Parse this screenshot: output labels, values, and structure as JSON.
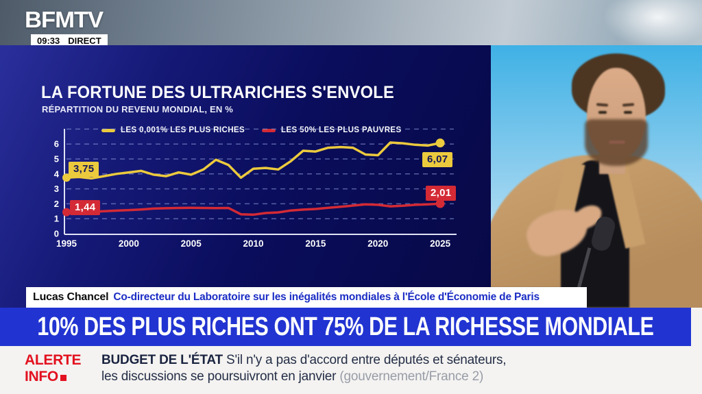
{
  "header": {
    "logo": "BFMTV",
    "time": "09:33",
    "live": "DIRECT"
  },
  "chart": {
    "title": "LA FORTUNE DES ULTRARICHES S'ENVOLE",
    "subtitle": "RÉPARTITION DU REVENU MONDIAL, EN %"
  },
  "chart_data": {
    "type": "line",
    "title": "LA FORTUNE DES ULTRARICHES S'ENVOLE",
    "subtitle": "RÉPARTITION DU REVENU MONDIAL, EN %",
    "x": [
      1995,
      1996,
      1997,
      1998,
      1999,
      2000,
      2001,
      2002,
      2003,
      2004,
      2005,
      2006,
      2007,
      2008,
      2009,
      2010,
      2011,
      2012,
      2013,
      2014,
      2015,
      2016,
      2017,
      2018,
      2019,
      2020,
      2021,
      2022,
      2023,
      2024,
      2025
    ],
    "series": [
      {
        "name": "LES 0,001% LES PLUS RICHES",
        "color": "#ecca3d",
        "label_text_color": "#15175a",
        "start_label": "3,75",
        "end_label": "6,07",
        "values": [
          3.75,
          3.8,
          3.7,
          3.85,
          4.0,
          4.1,
          4.2,
          3.95,
          3.85,
          4.1,
          3.95,
          4.3,
          4.95,
          4.6,
          3.75,
          4.35,
          4.4,
          4.3,
          4.85,
          5.55,
          5.5,
          5.75,
          5.8,
          5.75,
          5.3,
          5.25,
          6.1,
          6.05,
          5.95,
          5.9,
          6.07
        ]
      },
      {
        "name": "LES 50% LES PLUS PAUVRES",
        "color": "#d42a35",
        "label_text_color": "#ffffff",
        "start_label": "1,44",
        "end_label": "2,01",
        "values": [
          1.44,
          1.45,
          1.47,
          1.5,
          1.54,
          1.58,
          1.62,
          1.68,
          1.7,
          1.72,
          1.73,
          1.72,
          1.71,
          1.72,
          1.3,
          1.27,
          1.38,
          1.42,
          1.55,
          1.61,
          1.65,
          1.73,
          1.8,
          1.88,
          1.96,
          1.93,
          1.83,
          1.87,
          1.93,
          1.96,
          2.01
        ]
      }
    ],
    "xticks": [
      1995,
      2000,
      2005,
      2010,
      2015,
      2020,
      2025
    ],
    "yticks": [
      0,
      1,
      2,
      3,
      4,
      5,
      6
    ],
    "ylim": [
      0,
      7
    ],
    "grid": "horizontal-dashed",
    "legend_position": "top"
  },
  "guest": {
    "name": "Lucas Chancel",
    "role": "Co-directeur du Laboratoire sur les inégalités mondiales à l'École d'Économie de Paris"
  },
  "headline": "10% DES PLUS RICHES ONT 75% DE LA RICHESSE MONDIALE",
  "ticker": {
    "alert_word1": "ALERTE",
    "alert_word2": "INFO",
    "topic": "BUDGET DE L'ÉTAT",
    "line1": "S'il n'y a pas d'accord entre députés et sénateurs,",
    "line2": "les discussions se poursuivront en janvier",
    "attribution": "(gouvernement/France 2)"
  },
  "colors": {
    "panel_navy": "#0a0d5c",
    "headline_blue": "#2134d1",
    "alert_red": "#e3101f",
    "guest_role_blue": "#1b2dc4",
    "axis_text": "#ffffff"
  }
}
